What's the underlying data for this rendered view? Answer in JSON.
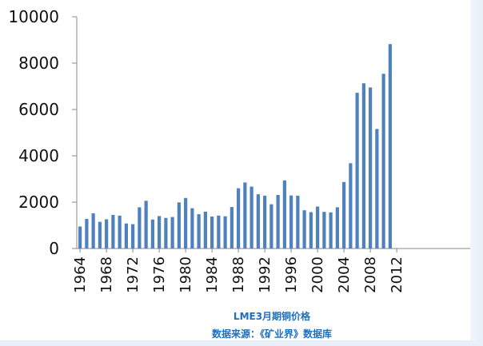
{
  "chart_data": {
    "type": "bar",
    "xlabel": "LME3月期铜价格",
    "source": "数据来源：《矿业界》数据库",
    "ylim": [
      0,
      10000
    ],
    "yticks": [
      "10000",
      "8000",
      "6000",
      "4000",
      "2000",
      "0"
    ],
    "x_tick_labels": [
      "1964",
      "1968",
      "1972",
      "1976",
      "1980",
      "1984",
      "1988",
      "1992",
      "1996",
      "2000",
      "2004",
      "2008",
      "2012"
    ],
    "categories": [
      1964,
      1965,
      1966,
      1967,
      1968,
      1969,
      1970,
      1971,
      1972,
      1973,
      1974,
      1975,
      1976,
      1977,
      1978,
      1979,
      1980,
      1981,
      1982,
      1983,
      1984,
      1985,
      1986,
      1987,
      1988,
      1989,
      1990,
      1991,
      1992,
      1993,
      1994,
      1995,
      1996,
      1997,
      1998,
      1999,
      2000,
      2001,
      2002,
      2003,
      2004,
      2005,
      2006,
      2007,
      2008,
      2009,
      2010,
      2011
    ],
    "values": [
      950,
      1280,
      1520,
      1150,
      1260,
      1450,
      1420,
      1080,
      1050,
      1780,
      2060,
      1250,
      1400,
      1320,
      1360,
      1990,
      2180,
      1740,
      1480,
      1590,
      1380,
      1420,
      1390,
      1790,
      2600,
      2850,
      2670,
      2340,
      2280,
      1910,
      2310,
      2940,
      2290,
      2280,
      1650,
      1570,
      1810,
      1580,
      1560,
      1780,
      2870,
      3680,
      6720,
      7130,
      6950,
      5160,
      7540,
      8820
    ],
    "bar_color": "#4f81bd",
    "grid": false
  }
}
